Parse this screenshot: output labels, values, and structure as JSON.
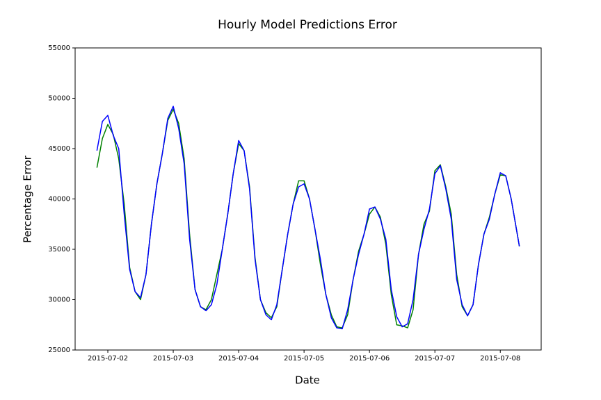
{
  "chart_data": {
    "type": "line",
    "title": "Hourly Model Predictions Error",
    "xlabel": "Date",
    "ylabel": "Percentage Error",
    "x": [
      -4,
      -2,
      0,
      2,
      4,
      6,
      8,
      10,
      12,
      14,
      16,
      18,
      20,
      22,
      24,
      26,
      28,
      30,
      32,
      34,
      36,
      38,
      40,
      42,
      44,
      46,
      48,
      50,
      52,
      54,
      56,
      58,
      60,
      62,
      64,
      66,
      68,
      70,
      72,
      74,
      76,
      78,
      80,
      82,
      84,
      86,
      88,
      90,
      92,
      94,
      96,
      98,
      100,
      102,
      104,
      106,
      108,
      110,
      112,
      114,
      116,
      118,
      120,
      122,
      124,
      126,
      128,
      130,
      132,
      134,
      136,
      138,
      140,
      142,
      144,
      146,
      148,
      151
    ],
    "series": [
      {
        "color": "#008000",
        "values": [
          43100,
          46000,
          47400,
          46400,
          44000,
          39500,
          33200,
          30800,
          30000,
          32500,
          37500,
          41500,
          44500,
          47800,
          48900,
          47500,
          44000,
          36500,
          31000,
          29300,
          29000,
          30000,
          32500,
          35000,
          38500,
          42500,
          45500,
          44800,
          41200,
          34200,
          30000,
          28700,
          28200,
          29300,
          33000,
          36500,
          39500,
          41800,
          41800,
          40000,
          37000,
          33500,
          30500,
          28500,
          27300,
          27200,
          28500,
          32000,
          34800,
          36500,
          38500,
          39200,
          38200,
          35500,
          30500,
          27500,
          27400,
          27200,
          29000,
          34500,
          37500,
          38800,
          42800,
          43400,
          41200,
          38500,
          32500,
          29300,
          28400,
          29500,
          33500,
          36500,
          38200,
          40500,
          42400,
          42300,
          40000,
          35300
        ]
      },
      {
        "color": "#0000ff",
        "values": [
          44800,
          47700,
          48300,
          46300,
          45000,
          38500,
          33000,
          30800,
          30200,
          32500,
          37500,
          41500,
          44500,
          48000,
          49200,
          47000,
          43500,
          36000,
          31000,
          29300,
          28900,
          29500,
          31500,
          35000,
          38500,
          42500,
          45800,
          44800,
          41000,
          34000,
          30000,
          28500,
          28000,
          29500,
          33000,
          36500,
          39500,
          41200,
          41500,
          40000,
          37000,
          34000,
          30500,
          28200,
          27200,
          27100,
          29000,
          32000,
          34500,
          36500,
          39000,
          39200,
          38000,
          36000,
          31000,
          28300,
          27300,
          27600,
          30000,
          34500,
          37000,
          39000,
          42500,
          43300,
          41000,
          38000,
          32000,
          29500,
          28400,
          29500,
          33500,
          36500,
          38000,
          40500,
          42600,
          42300,
          40000,
          35300
        ]
      }
    ],
    "xlim": [
      -12,
      159
    ],
    "xticks": [
      {
        "value": 0,
        "label": "2015-07-02"
      },
      {
        "value": 24,
        "label": "2015-07-03"
      },
      {
        "value": 48,
        "label": "2015-07-04"
      },
      {
        "value": 72,
        "label": "2015-07-05"
      },
      {
        "value": 96,
        "label": "2015-07-06"
      },
      {
        "value": 120,
        "label": "2015-07-07"
      },
      {
        "value": 144,
        "label": "2015-07-08"
      }
    ],
    "ylim": [
      25000,
      55000
    ],
    "yticks": [
      25000,
      30000,
      35000,
      40000,
      45000,
      50000,
      55000
    ],
    "grid": false
  }
}
